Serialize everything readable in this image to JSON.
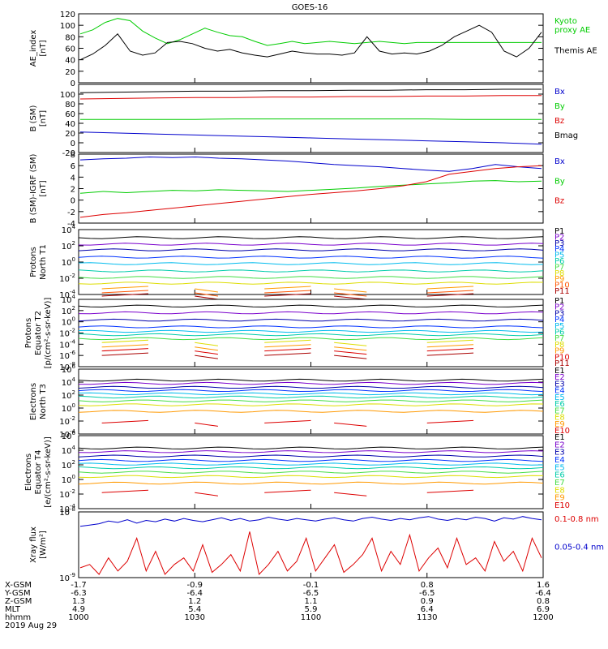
{
  "title": "GOES-16",
  "colors": {
    "black": "#000000",
    "green": "#00cc00",
    "blue": "#0000cc",
    "red": "#dd0000",
    "purple": "#7a00cc",
    "darkblue": "#0000aa",
    "mediumblue": "#0033ff",
    "cyan": "#00bbee",
    "teal": "#00ccaa",
    "lightgreen": "#44dd44",
    "yellow": "#dddd00",
    "orange": "#ff9900",
    "orangered": "#ff5500",
    "darkred": "#aa0000",
    "magenta": "#cc0077"
  },
  "chart_data": [
    {
      "type": "line",
      "ylabel": "AE_index\n[nT]",
      "ylim": [
        0,
        120
      ],
      "yticks": [
        0,
        20,
        40,
        60,
        80,
        100,
        120
      ],
      "series": [
        {
          "name": "Kyoto\nproxy AE",
          "color": "green",
          "values": [
            85,
            92,
            105,
            112,
            108,
            90,
            78,
            68,
            75,
            85,
            95,
            88,
            82,
            80,
            72,
            65,
            68,
            72,
            68,
            70,
            72,
            70,
            68,
            70,
            72,
            70,
            68,
            70,
            70,
            70,
            70,
            70,
            70,
            70,
            70,
            70,
            70,
            70
          ]
        },
        {
          "name": "Themis AE",
          "color": "black",
          "values": [
            40,
            50,
            65,
            85,
            55,
            48,
            52,
            70,
            72,
            68,
            60,
            55,
            58,
            52,
            48,
            45,
            50,
            55,
            52,
            50,
            50,
            48,
            52,
            80,
            55,
            50,
            52,
            50,
            55,
            65,
            80,
            90,
            100,
            88,
            55,
            45,
            60,
            88
          ]
        }
      ]
    },
    {
      "type": "line",
      "ylabel": "B (SM)\n[nT]",
      "ylim": [
        -20,
        120
      ],
      "yticks": [
        -20,
        0,
        20,
        40,
        60,
        80,
        100
      ],
      "series": [
        {
          "name": "Bx",
          "color": "blue",
          "values": [
            22,
            20,
            18,
            16,
            14,
            12,
            10,
            8,
            6,
            4,
            2,
            0,
            -3
          ]
        },
        {
          "name": "By",
          "color": "green",
          "values": [
            48,
            48,
            48,
            48,
            49,
            49,
            49,
            49,
            49,
            49,
            48,
            48,
            48
          ]
        },
        {
          "name": "Bz",
          "color": "red",
          "values": [
            90,
            91,
            92,
            93,
            93,
            94,
            94,
            95,
            95,
            96,
            96,
            97,
            97
          ]
        },
        {
          "name": "Bmag",
          "color": "black",
          "values": [
            103,
            104,
            105,
            106,
            106,
            107,
            107,
            108,
            108,
            109,
            109,
            110,
            110
          ]
        }
      ]
    },
    {
      "type": "line",
      "ylabel": "B (SM)-IGRF (SM)\n[nT]",
      "ylim": [
        -4,
        8
      ],
      "yticks": [
        -4,
        -2,
        0,
        2,
        4,
        6,
        8
      ],
      "series": [
        {
          "name": "Bx",
          "color": "blue",
          "values": [
            7.0,
            7.2,
            7.3,
            7.5,
            7.4,
            7.5,
            7.3,
            7.2,
            7.0,
            6.8,
            6.5,
            6.2,
            6.0,
            5.8,
            5.5,
            5.2,
            5.0,
            5.5,
            6.2,
            5.8,
            5.5
          ]
        },
        {
          "name": "By",
          "color": "green",
          "values": [
            1.2,
            1.5,
            1.3,
            1.5,
            1.7,
            1.6,
            1.8,
            1.7,
            1.6,
            1.5,
            1.7,
            1.9,
            2.1,
            2.4,
            2.6,
            2.8,
            3.0,
            3.3,
            3.4,
            3.2,
            3.3
          ]
        },
        {
          "name": "Bz",
          "color": "red",
          "values": [
            -3.0,
            -2.5,
            -2.2,
            -1.8,
            -1.4,
            -1.0,
            -0.6,
            -0.2,
            0.2,
            0.6,
            1.0,
            1.3,
            1.6,
            2.0,
            2.5,
            3.2,
            4.5,
            5.0,
            5.5,
            5.8,
            6.0
          ]
        }
      ]
    },
    {
      "type": "line",
      "ylabel": "Protons\nNorth T1",
      "yscale": "log",
      "ylim_exp": [
        -4,
        4
      ],
      "ytick_exps": [
        -4,
        -2,
        0,
        2,
        4
      ],
      "series": [
        {
          "name": "P1",
          "color": "black",
          "exp": 3.0
        },
        {
          "name": "P2",
          "color": "purple",
          "exp": 2.2
        },
        {
          "name": "P3",
          "color": "darkblue",
          "exp": 1.5
        },
        {
          "name": "P4",
          "color": "mediumblue",
          "exp": 0.6
        },
        {
          "name": "P5",
          "color": "cyan",
          "exp": -0.2
        },
        {
          "name": "P6",
          "color": "teal",
          "exp": -1.1
        },
        {
          "name": "P7",
          "color": "lightgreen",
          "exp": -1.9
        },
        {
          "name": "P8",
          "color": "yellow",
          "exp": -2.6
        },
        {
          "name": "P9",
          "color": "orange",
          "exp": -3.3,
          "partial": true
        },
        {
          "name": "P10",
          "color": "orangered",
          "exp": -3.8,
          "partial": true
        },
        {
          "name": "P11",
          "color": "darkred",
          "exp": -4.2,
          "partial": true
        }
      ]
    },
    {
      "type": "line",
      "ylabel": "Protons\nEquator T2\n[p/(cm²-s-sr-keV)]",
      "yscale": "log",
      "ylim_exp": [
        -8,
        4
      ],
      "ytick_exps": [
        -8,
        -6,
        -4,
        -2,
        0,
        2,
        4
      ],
      "series": [
        {
          "name": "P1",
          "color": "black",
          "exp": 2.8
        },
        {
          "name": "P2",
          "color": "purple",
          "exp": 1.6
        },
        {
          "name": "P3",
          "color": "darkblue",
          "exp": 0.3
        },
        {
          "name": "P4",
          "color": "mediumblue",
          "exp": -0.9
        },
        {
          "name": "P5",
          "color": "cyan",
          "exp": -1.7
        },
        {
          "name": "P6",
          "color": "teal",
          "exp": -2.3
        },
        {
          "name": "P7",
          "color": "lightgreen",
          "exp": -3.0
        },
        {
          "name": "P8",
          "color": "yellow",
          "exp": -3.7,
          "partial": true
        },
        {
          "name": "P9",
          "color": "orange",
          "exp": -4.5,
          "partial": true
        },
        {
          "name": "P10",
          "color": "red",
          "exp": -5.2,
          "partial": true
        },
        {
          "name": "P11",
          "color": "darkred",
          "exp": -6.0,
          "partial": true
        }
      ]
    },
    {
      "type": "line",
      "ylabel": "Electrons\nNorth T3",
      "yscale": "log",
      "ylim_exp": [
        -4,
        6
      ],
      "ytick_exps": [
        -4,
        -2,
        0,
        2,
        4,
        6
      ],
      "series": [
        {
          "name": "E1",
          "color": "black",
          "exp": 4.3
        },
        {
          "name": "E2",
          "color": "purple",
          "exp": 3.8
        },
        {
          "name": "E3",
          "color": "darkblue",
          "exp": 3.2
        },
        {
          "name": "E4",
          "color": "mediumblue",
          "exp": 2.7
        },
        {
          "name": "E5",
          "color": "cyan",
          "exp": 2.2
        },
        {
          "name": "E6",
          "color": "teal",
          "exp": 1.7
        },
        {
          "name": "E7",
          "color": "lightgreen",
          "exp": 1.1
        },
        {
          "name": "E8",
          "color": "yellow",
          "exp": 0.5
        },
        {
          "name": "E9",
          "color": "orange",
          "exp": -0.5
        },
        {
          "name": "E10",
          "color": "red",
          "exp": -2.3,
          "partial": true
        }
      ]
    },
    {
      "type": "line",
      "ylabel": "Electrons\nEquator T4\n[e/(cm²-s-sr-keV)]",
      "yscale": "log",
      "ylim_exp": [
        -4,
        6
      ],
      "ytick_exps": [
        -4,
        -2,
        0,
        2,
        4,
        6
      ],
      "series": [
        {
          "name": "E1",
          "color": "black",
          "exp": 4.3
        },
        {
          "name": "E2",
          "color": "purple",
          "exp": 3.8
        },
        {
          "name": "E3",
          "color": "darkblue",
          "exp": 3.2
        },
        {
          "name": "E4",
          "color": "mediumblue",
          "exp": 2.6
        },
        {
          "name": "E5",
          "color": "cyan",
          "exp": 2.1
        },
        {
          "name": "E6",
          "color": "teal",
          "exp": 1.6
        },
        {
          "name": "E7",
          "color": "lightgreen",
          "exp": 1.0
        },
        {
          "name": "E8",
          "color": "yellow",
          "exp": 0.4
        },
        {
          "name": "E9",
          "color": "orange",
          "exp": -0.5
        },
        {
          "name": "E10",
          "color": "red",
          "exp": -1.8,
          "partial": true
        }
      ]
    },
    {
      "type": "line",
      "ylabel": "Xray flux\n[W/m²]",
      "yscale": "log",
      "ylim_exp": [
        -9,
        -8
      ],
      "ytick_exps": [
        -9,
        -8
      ],
      "series": [
        {
          "name": "0.1-0.8 nm",
          "color": "red",
          "values": [
            0.15,
            0.2,
            0.05,
            0.3,
            0.1,
            0.25,
            0.6,
            0.1,
            0.4,
            0.05,
            0.2,
            0.3,
            0.1,
            0.5,
            0.08,
            0.2,
            0.35,
            0.1,
            0.7,
            0.05,
            0.2,
            0.4,
            0.1,
            0.25,
            0.6,
            0.1,
            0.3,
            0.5,
            0.08,
            0.2,
            0.35,
            0.6,
            0.1,
            0.4,
            0.2,
            0.65,
            0.1,
            0.3,
            0.45,
            0.15,
            0.6,
            0.2,
            0.3,
            0.1,
            0.55,
            0.25,
            0.4,
            0.1,
            0.6,
            0.3
          ]
        },
        {
          "name": "0.05-0.4 nm",
          "color": "blue",
          "values": [
            0.78,
            0.8,
            0.82,
            0.86,
            0.84,
            0.88,
            0.83,
            0.87,
            0.85,
            0.89,
            0.86,
            0.9,
            0.87,
            0.85,
            0.88,
            0.91,
            0.87,
            0.9,
            0.86,
            0.88,
            0.92,
            0.89,
            0.87,
            0.9,
            0.88,
            0.86,
            0.89,
            0.91,
            0.88,
            0.86,
            0.9,
            0.92,
            0.89,
            0.87,
            0.9,
            0.88,
            0.91,
            0.93,
            0.89,
            0.87,
            0.9,
            0.88,
            0.92,
            0.9,
            0.86,
            0.91,
            0.89,
            0.93,
            0.9,
            0.88
          ]
        }
      ]
    }
  ],
  "xaxis": {
    "rows": [
      {
        "label": "X-GSM",
        "values": [
          "-1.7",
          "-0.9",
          "-0.1",
          "0.8",
          "1.6"
        ]
      },
      {
        "label": "Y-GSM",
        "values": [
          "-6.3",
          "-6.4",
          "-6.5",
          "-6.5",
          "-6.4"
        ]
      },
      {
        "label": "Z-GSM",
        "values": [
          "1.3",
          "1.2",
          "1.1",
          "0.9",
          "0.8"
        ]
      },
      {
        "label": "MLT",
        "values": [
          "4.9",
          "5.4",
          "5.9",
          "6.4",
          "6.9"
        ]
      },
      {
        "label": "hhmm",
        "values": [
          "1000",
          "1030",
          "1100",
          "1130",
          "1200"
        ]
      }
    ],
    "date": "2019 Aug 29"
  }
}
